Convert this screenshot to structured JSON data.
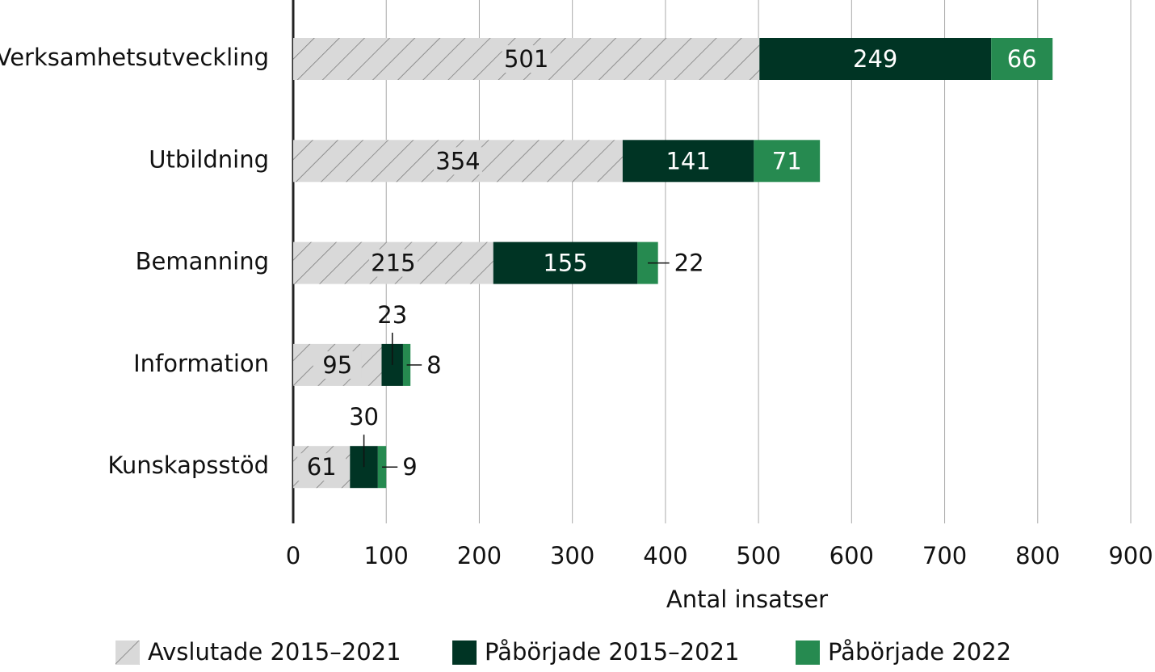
{
  "chart_data": {
    "type": "stacked-barh",
    "categories": [
      "Verksamhetsutveckling",
      "Utbildning",
      "Bemanning",
      "Information",
      "Kunskapsstöd"
    ],
    "series": [
      {
        "name": "Avslutade 2015–2021",
        "color": "#d9d9d9",
        "values": [
          501,
          354,
          215,
          95,
          61
        ]
      },
      {
        "name": "Påbörjade 2015–2021",
        "color": "#003424",
        "values": [
          249,
          141,
          155,
          23,
          30
        ]
      },
      {
        "name": "Påbörjade 2022",
        "color": "#268a50",
        "values": [
          66,
          71,
          22,
          8,
          9
        ]
      }
    ],
    "xlabel": "Antal insatser",
    "xlim": [
      0,
      900
    ],
    "xticks": [
      0,
      100,
      200,
      300,
      400,
      500,
      600,
      700,
      800,
      900
    ],
    "grid": true,
    "legend": "bottom"
  }
}
